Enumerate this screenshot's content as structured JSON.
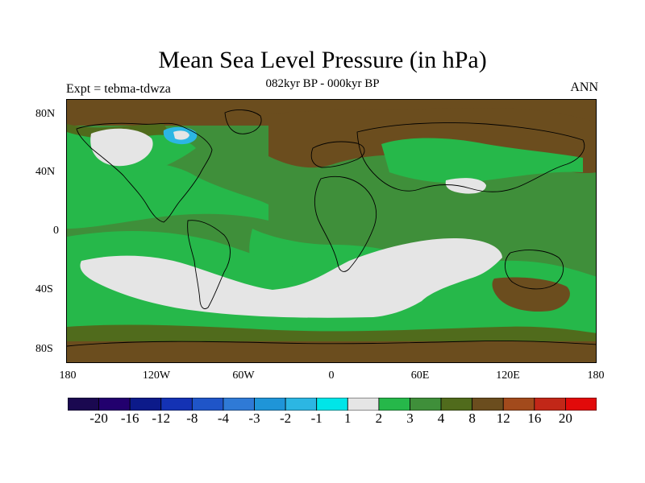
{
  "figure": {
    "title": "Mean Sea Level Pressure (in hPa)",
    "subtitle": "082kyr BP - 000kyr BP",
    "left_label": "Expt = tebma-tdwza",
    "right_label": "ANN"
  },
  "axes": {
    "lat_ticks": [
      "80N",
      "40N",
      "0",
      "40S",
      "80S"
    ],
    "lon_ticks": [
      "180",
      "120W",
      "60W",
      "0",
      "60E",
      "120E",
      "180"
    ]
  },
  "legend": {
    "labels": [
      "-20",
      "-16",
      "-12",
      "-8",
      "-4",
      "-3",
      "-2",
      "-1",
      "1",
      "2",
      "3",
      "4",
      "8",
      "12",
      "16",
      "20"
    ],
    "colors": [
      "#22006e",
      "#0c1a8a",
      "#1432b4",
      "#1f55c8",
      "#2f7ad6",
      "#1f95d8",
      "#2cb6e3",
      "#00e5e8",
      "#e5e5e5",
      "#26b84a",
      "#3f8f3a",
      "#506b1c",
      "#6b4d1e",
      "#a24a1c",
      "#c22718",
      "#e20a0a"
    ]
  },
  "colors": {
    "no_change": "#e5e5e5",
    "plus_1_2": "#26b84a",
    "plus_2_3": "#3f8f3a",
    "plus_3_4": "#506b1c",
    "plus_4_8": "#6b4d1e",
    "coast": "#000000"
  }
}
